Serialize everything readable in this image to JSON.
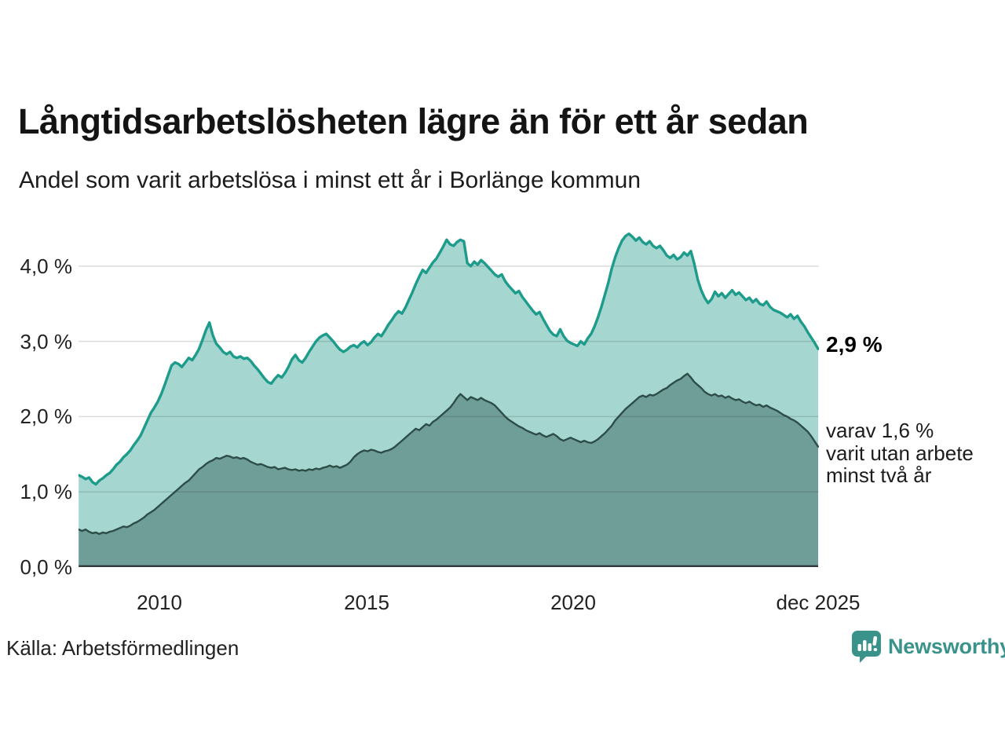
{
  "header": {
    "title": "Långtidsarbetslösheten lägre än för ett år sedan",
    "subtitle": "Andel som varit arbetslösa i minst ett år i Borlänge kommun"
  },
  "chart_data": {
    "type": "area",
    "title": "Långtidsarbetslösheten lägre än för ett år sedan",
    "subtitle": "Andel som varit arbetslösa i minst ett år i Borlänge kommun",
    "unit": "percent",
    "xlim": [
      2008.05,
      2025.92
    ],
    "ylim": [
      0,
      4.51
    ],
    "grid": true,
    "legend_position": "none",
    "y_ticks": [
      {
        "value": 4,
        "label": "4,0 %"
      },
      {
        "value": 3,
        "label": "3,0 %"
      },
      {
        "value": 2,
        "label": "2,0 %"
      },
      {
        "value": 1,
        "label": "1,0 %"
      },
      {
        "value": 0,
        "label": "0,0 %"
      }
    ],
    "x_ticks": [
      {
        "value": 2010,
        "label": "2010"
      },
      {
        "value": 2015,
        "label": "2015"
      },
      {
        "value": 2020,
        "label": "2020"
      },
      {
        "value": 2025.92,
        "label": "dec 2025"
      }
    ],
    "series": [
      {
        "name": "Andel arbetslösa minst ett år",
        "line_color": "#1d9b8b",
        "fill_color": "#a5d6d0",
        "end_value_label": "2,9 %",
        "values": [
          1.22,
          1.2,
          1.17,
          1.19,
          1.13,
          1.1,
          1.15,
          1.18,
          1.22,
          1.25,
          1.3,
          1.36,
          1.4,
          1.46,
          1.5,
          1.55,
          1.62,
          1.68,
          1.75,
          1.85,
          1.95,
          2.05,
          2.12,
          2.2,
          2.3,
          2.42,
          2.55,
          2.68,
          2.72,
          2.7,
          2.66,
          2.72,
          2.78,
          2.75,
          2.82,
          2.9,
          3.02,
          3.15,
          3.25,
          3.08,
          2.97,
          2.92,
          2.86,
          2.83,
          2.86,
          2.8,
          2.78,
          2.8,
          2.77,
          2.78,
          2.74,
          2.68,
          2.63,
          2.57,
          2.51,
          2.46,
          2.44,
          2.5,
          2.55,
          2.52,
          2.58,
          2.66,
          2.76,
          2.82,
          2.75,
          2.72,
          2.78,
          2.86,
          2.93,
          3.0,
          3.05,
          3.08,
          3.1,
          3.05,
          3.0,
          2.94,
          2.89,
          2.86,
          2.89,
          2.93,
          2.95,
          2.92,
          2.97,
          3.0,
          2.95,
          2.99,
          3.05,
          3.1,
          3.07,
          3.14,
          3.22,
          3.28,
          3.35,
          3.4,
          3.37,
          3.45,
          3.55,
          3.65,
          3.76,
          3.86,
          3.95,
          3.91,
          3.98,
          4.05,
          4.1,
          4.18,
          4.26,
          4.35,
          4.29,
          4.27,
          4.32,
          4.35,
          4.33,
          4.04,
          4.0,
          4.06,
          4.02,
          4.08,
          4.04,
          3.99,
          3.94,
          3.89,
          3.86,
          3.89,
          3.8,
          3.74,
          3.69,
          3.64,
          3.67,
          3.59,
          3.53,
          3.47,
          3.41,
          3.36,
          3.39,
          3.3,
          3.22,
          3.14,
          3.09,
          3.07,
          3.16,
          3.07,
          3.01,
          2.98,
          2.96,
          2.94,
          3.0,
          2.96,
          3.04,
          3.1,
          3.2,
          3.32,
          3.46,
          3.62,
          3.78,
          3.97,
          4.12,
          4.24,
          4.34,
          4.4,
          4.43,
          4.39,
          4.34,
          4.38,
          4.32,
          4.29,
          4.33,
          4.27,
          4.24,
          4.27,
          4.21,
          4.14,
          4.11,
          4.15,
          4.09,
          4.12,
          4.18,
          4.14,
          4.2,
          4.03,
          3.82,
          3.68,
          3.58,
          3.51,
          3.56,
          3.66,
          3.6,
          3.64,
          3.58,
          3.63,
          3.68,
          3.62,
          3.65,
          3.6,
          3.55,
          3.58,
          3.52,
          3.56,
          3.5,
          3.48,
          3.53,
          3.46,
          3.42,
          3.4,
          3.38,
          3.35,
          3.32,
          3.36,
          3.3,
          3.34,
          3.26,
          3.2,
          3.12,
          3.05,
          2.98,
          2.9
        ]
      },
      {
        "name": "varav utan arbete minst två år",
        "line_color": "#2d4d48",
        "fill_color": "#6f9e99",
        "end_value_label": "varav 1,6 %",
        "values": [
          0.5,
          0.48,
          0.5,
          0.47,
          0.45,
          0.46,
          0.44,
          0.46,
          0.45,
          0.47,
          0.48,
          0.5,
          0.52,
          0.54,
          0.53,
          0.55,
          0.58,
          0.6,
          0.63,
          0.66,
          0.7,
          0.73,
          0.76,
          0.8,
          0.84,
          0.88,
          0.92,
          0.96,
          1.0,
          1.04,
          1.08,
          1.12,
          1.15,
          1.2,
          1.25,
          1.3,
          1.33,
          1.37,
          1.4,
          1.42,
          1.45,
          1.44,
          1.46,
          1.48,
          1.47,
          1.45,
          1.46,
          1.44,
          1.45,
          1.43,
          1.4,
          1.38,
          1.36,
          1.37,
          1.35,
          1.33,
          1.32,
          1.33,
          1.3,
          1.31,
          1.32,
          1.3,
          1.29,
          1.3,
          1.28,
          1.29,
          1.28,
          1.3,
          1.29,
          1.31,
          1.3,
          1.32,
          1.33,
          1.35,
          1.33,
          1.34,
          1.32,
          1.34,
          1.36,
          1.4,
          1.46,
          1.5,
          1.53,
          1.55,
          1.54,
          1.56,
          1.55,
          1.53,
          1.52,
          1.54,
          1.55,
          1.57,
          1.6,
          1.64,
          1.68,
          1.72,
          1.76,
          1.8,
          1.84,
          1.82,
          1.86,
          1.9,
          1.88,
          1.93,
          1.96,
          2.0,
          2.04,
          2.08,
          2.12,
          2.18,
          2.25,
          2.3,
          2.26,
          2.22,
          2.26,
          2.24,
          2.22,
          2.25,
          2.22,
          2.2,
          2.18,
          2.15,
          2.1,
          2.05,
          2.0,
          1.96,
          1.93,
          1.9,
          1.87,
          1.85,
          1.82,
          1.8,
          1.78,
          1.76,
          1.78,
          1.75,
          1.73,
          1.75,
          1.77,
          1.74,
          1.7,
          1.68,
          1.7,
          1.72,
          1.7,
          1.68,
          1.66,
          1.68,
          1.66,
          1.65,
          1.67,
          1.7,
          1.74,
          1.78,
          1.83,
          1.88,
          1.95,
          2.0,
          2.05,
          2.1,
          2.14,
          2.18,
          2.22,
          2.26,
          2.28,
          2.26,
          2.29,
          2.28,
          2.3,
          2.33,
          2.36,
          2.38,
          2.42,
          2.45,
          2.48,
          2.5,
          2.54,
          2.57,
          2.52,
          2.46,
          2.42,
          2.38,
          2.33,
          2.3,
          2.28,
          2.3,
          2.27,
          2.28,
          2.25,
          2.27,
          2.24,
          2.22,
          2.23,
          2.2,
          2.18,
          2.2,
          2.17,
          2.15,
          2.16,
          2.13,
          2.15,
          2.12,
          2.1,
          2.08,
          2.05,
          2.02,
          2.0,
          1.97,
          1.95,
          1.92,
          1.88,
          1.84,
          1.8,
          1.74,
          1.67,
          1.6
        ]
      }
    ],
    "annotations": {
      "series1_end": "2,9 %",
      "series2_end_lines": [
        "varav 1,6 %",
        "varit utan arbete",
        "minst två år"
      ]
    }
  },
  "footer": {
    "source": "Källa: Arbetsförmedlingen",
    "brand_name": "Newsworthy",
    "brand_color": "#3a938b"
  },
  "colors": {
    "teal_line": "#1d9b8b",
    "light_fill": "#a5d6d0",
    "dark_line": "#2d4d48",
    "dark_fill": "#6f9e99",
    "gridline": "rgba(40,40,40,0.16)",
    "baseline": "#333a3c"
  }
}
